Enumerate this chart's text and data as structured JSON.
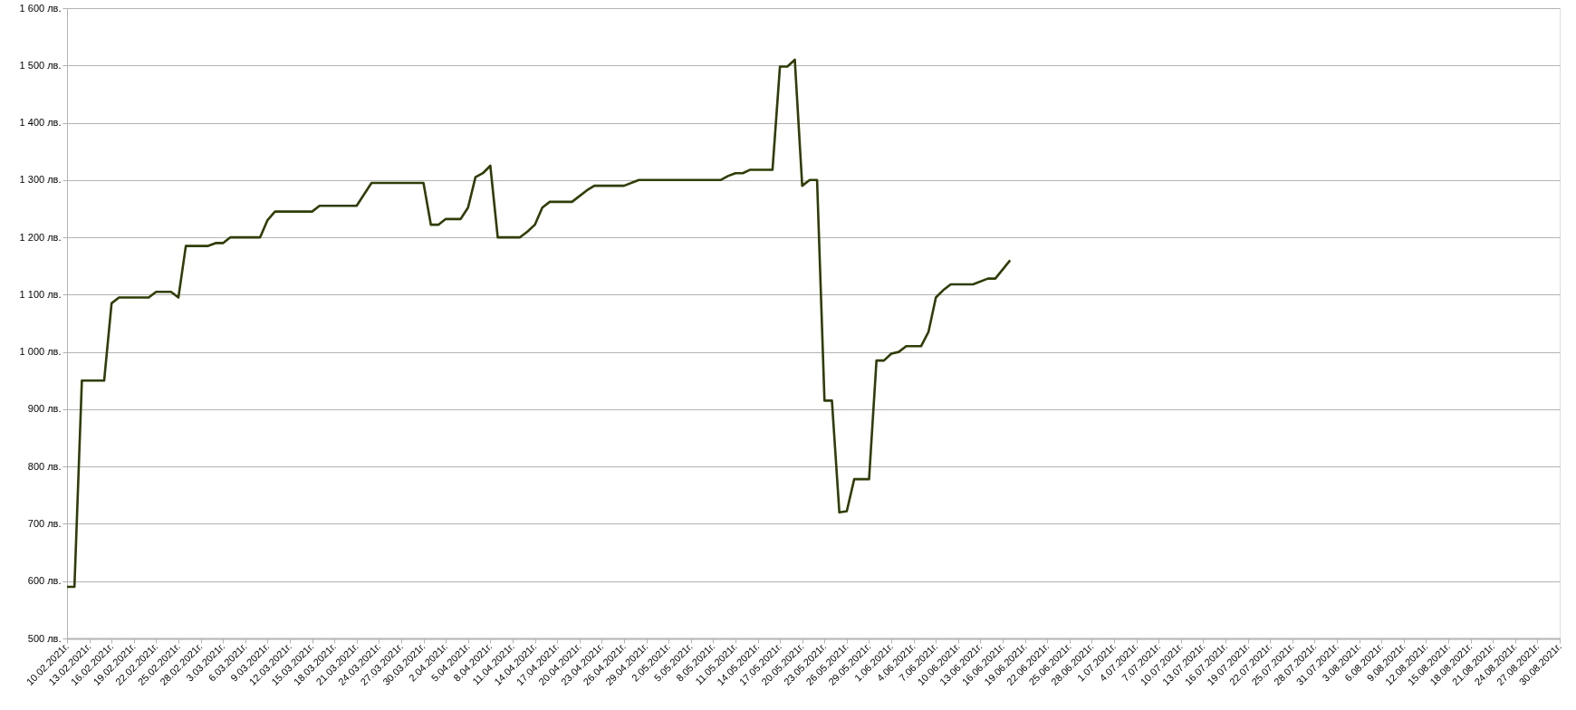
{
  "chart_data": {
    "type": "line",
    "x": [
      "2021-02-10",
      "2021-02-11",
      "2021-02-12",
      "2021-02-15",
      "2021-02-16",
      "2021-02-17",
      "2021-02-21",
      "2021-02-22",
      "2021-02-24",
      "2021-02-25",
      "2021-02-26",
      "2021-03-01",
      "2021-03-02",
      "2021-03-03",
      "2021-03-04",
      "2021-03-08",
      "2021-03-09",
      "2021-03-10",
      "2021-03-15",
      "2021-03-16",
      "2021-03-21",
      "2021-03-23",
      "2021-03-30",
      "2021-03-31",
      "2021-04-01",
      "2021-04-02",
      "2021-04-04",
      "2021-04-05",
      "2021-04-06",
      "2021-04-07",
      "2021-04-08",
      "2021-04-09",
      "2021-04-12",
      "2021-04-13",
      "2021-04-14",
      "2021-04-15",
      "2021-04-16",
      "2021-04-19",
      "2021-04-21",
      "2021-04-22",
      "2021-04-26",
      "2021-04-28",
      "2021-05-09",
      "2021-05-10",
      "2021-05-11",
      "2021-05-12",
      "2021-05-13",
      "2021-05-16",
      "2021-05-17",
      "2021-05-18",
      "2021-05-19",
      "2021-05-20",
      "2021-05-21",
      "2021-05-22",
      "2021-05-23",
      "2021-05-24",
      "2021-05-25",
      "2021-05-26",
      "2021-05-27",
      "2021-05-29",
      "2021-05-30",
      "2021-05-31",
      "2021-06-01",
      "2021-06-02",
      "2021-06-03",
      "2021-06-05",
      "2021-06-06",
      "2021-06-07",
      "2021-06-08",
      "2021-06-09",
      "2021-06-12",
      "2021-06-14",
      "2021-06-15",
      "2021-06-17"
    ],
    "series": [
      {
        "color": "#2f3d06",
        "values": [
          590,
          590,
          950,
          950,
          1085,
          1095,
          1095,
          1105,
          1105,
          1095,
          1185,
          1185,
          1190,
          1190,
          1200,
          1200,
          1230,
          1245,
          1245,
          1255,
          1255,
          1295,
          1295,
          1222,
          1222,
          1232,
          1232,
          1252,
          1305,
          1312,
          1325,
          1200,
          1200,
          1210,
          1222,
          1252,
          1262,
          1262,
          1282,
          1290,
          1290,
          1300,
          1300,
          1307,
          1312,
          1312,
          1318,
          1318,
          1498,
          1498,
          1510,
          1290,
          1300,
          1300,
          915,
          915,
          720,
          722,
          778,
          778,
          985,
          985,
          997,
          1000,
          1010,
          1010,
          1035,
          1095,
          1108,
          1118,
          1118,
          1128,
          1128,
          1160
        ]
      }
    ],
    "xlim": [
      "2021-02-10",
      "2021-08-30"
    ],
    "xticks": [
      {
        "value": "2021-02-10",
        "label": "10.02.2021г."
      },
      {
        "value": "2021-02-13",
        "label": "13.02.2021г."
      },
      {
        "value": "2021-02-16",
        "label": "16.02.2021г."
      },
      {
        "value": "2021-02-19",
        "label": "19.02.2021г."
      },
      {
        "value": "2021-02-22",
        "label": "22.02.2021г."
      },
      {
        "value": "2021-02-25",
        "label": "25.02.2021г."
      },
      {
        "value": "2021-02-28",
        "label": "28.02.2021г."
      },
      {
        "value": "2021-03-03",
        "label": "3.03.2021г."
      },
      {
        "value": "2021-03-06",
        "label": "6.03.2021г."
      },
      {
        "value": "2021-03-09",
        "label": "9.03.2021г."
      },
      {
        "value": "2021-03-12",
        "label": "12.03.2021г."
      },
      {
        "value": "2021-03-15",
        "label": "15.03.2021г."
      },
      {
        "value": "2021-03-18",
        "label": "18.03.2021г."
      },
      {
        "value": "2021-03-21",
        "label": "21.03.2021г."
      },
      {
        "value": "2021-03-24",
        "label": "24.03.2021г."
      },
      {
        "value": "2021-03-27",
        "label": "27.03.2021г."
      },
      {
        "value": "2021-03-30",
        "label": "30.03.2021г."
      },
      {
        "value": "2021-04-02",
        "label": "2.04.2021г."
      },
      {
        "value": "2021-04-05",
        "label": "5.04.2021г."
      },
      {
        "value": "2021-04-08",
        "label": "8.04.2021г."
      },
      {
        "value": "2021-04-11",
        "label": "11.04.2021г."
      },
      {
        "value": "2021-04-14",
        "label": "14.04.2021г."
      },
      {
        "value": "2021-04-17",
        "label": "17.04.2021г."
      },
      {
        "value": "2021-04-20",
        "label": "20.04.2021г."
      },
      {
        "value": "2021-04-23",
        "label": "23.04.2021г."
      },
      {
        "value": "2021-04-26",
        "label": "26.04.2021г."
      },
      {
        "value": "2021-04-29",
        "label": "29.04.2021г."
      },
      {
        "value": "2021-05-02",
        "label": "2.05.2021г."
      },
      {
        "value": "2021-05-05",
        "label": "5.05.2021г."
      },
      {
        "value": "2021-05-08",
        "label": "8.05.2021г."
      },
      {
        "value": "2021-05-11",
        "label": "11.05.2021г."
      },
      {
        "value": "2021-05-14",
        "label": "14.05.2021г."
      },
      {
        "value": "2021-05-17",
        "label": "17.05.2021г."
      },
      {
        "value": "2021-05-20",
        "label": "20.05.2021г."
      },
      {
        "value": "2021-05-23",
        "label": "23.05.2021г."
      },
      {
        "value": "2021-05-26",
        "label": "26.05.2021г."
      },
      {
        "value": "2021-05-29",
        "label": "29.05.2021г."
      },
      {
        "value": "2021-06-01",
        "label": "1.06.2021г."
      },
      {
        "value": "2021-06-04",
        "label": "4.06.2021г."
      },
      {
        "value": "2021-06-07",
        "label": "7.06.2021г."
      },
      {
        "value": "2021-06-10",
        "label": "10.06.2021г."
      },
      {
        "value": "2021-06-13",
        "label": "13.06.2021г."
      },
      {
        "value": "2021-06-16",
        "label": "16.06.2021г."
      },
      {
        "value": "2021-06-19",
        "label": "19.06.2021г."
      },
      {
        "value": "2021-06-22",
        "label": "22.06.2021г."
      },
      {
        "value": "2021-06-25",
        "label": "25.06.2021г."
      },
      {
        "value": "2021-06-28",
        "label": "28.06.2021г."
      },
      {
        "value": "2021-07-01",
        "label": "1.07.2021г."
      },
      {
        "value": "2021-07-04",
        "label": "4.07.2021г."
      },
      {
        "value": "2021-07-07",
        "label": "7.07.2021г."
      },
      {
        "value": "2021-07-10",
        "label": "10.07.2021г."
      },
      {
        "value": "2021-07-13",
        "label": "13.07.2021г."
      },
      {
        "value": "2021-07-16",
        "label": "16.07.2021г."
      },
      {
        "value": "2021-07-19",
        "label": "19.07.2021г."
      },
      {
        "value": "2021-07-22",
        "label": "22.07.2021г."
      },
      {
        "value": "2021-07-25",
        "label": "25.07.2021г."
      },
      {
        "value": "2021-07-28",
        "label": "28.07.2021г."
      },
      {
        "value": "2021-07-31",
        "label": "31.07.2021г."
      },
      {
        "value": "2021-08-03",
        "label": "3.08.2021г."
      },
      {
        "value": "2021-08-06",
        "label": "6.08.2021г."
      },
      {
        "value": "2021-08-09",
        "label": "9.08.2021г."
      },
      {
        "value": "2021-08-12",
        "label": "12.08.2021г."
      },
      {
        "value": "2021-08-15",
        "label": "15.08.2021г."
      },
      {
        "value": "2021-08-18",
        "label": "18.08.2021г."
      },
      {
        "value": "2021-08-21",
        "label": "21.08.2021г."
      },
      {
        "value": "2021-08-24",
        "label": "24.08.2021г."
      },
      {
        "value": "2021-08-27",
        "label": "27.08.2021г."
      },
      {
        "value": "2021-08-30",
        "label": "30.08.2021г."
      }
    ],
    "ylim": [
      500,
      1600
    ],
    "yticks": [
      {
        "value": 500,
        "label": "500 лв."
      },
      {
        "value": 600,
        "label": "600 лв."
      },
      {
        "value": 700,
        "label": "700 лв."
      },
      {
        "value": 800,
        "label": "800 лв."
      },
      {
        "value": 900,
        "label": "900 лв."
      },
      {
        "value": 1000,
        "label": "1 000 лв."
      },
      {
        "value": 1100,
        "label": "1 100 лв."
      },
      {
        "value": 1200,
        "label": "1 200 лв."
      },
      {
        "value": 1300,
        "label": "1 300 лв."
      },
      {
        "value": 1400,
        "label": "1 400 лв."
      },
      {
        "value": 1500,
        "label": "1 500 лв."
      },
      {
        "value": 1600,
        "label": "1 600 лв."
      }
    ],
    "grid": "y",
    "marker": "none",
    "line_style": "solid"
  }
}
